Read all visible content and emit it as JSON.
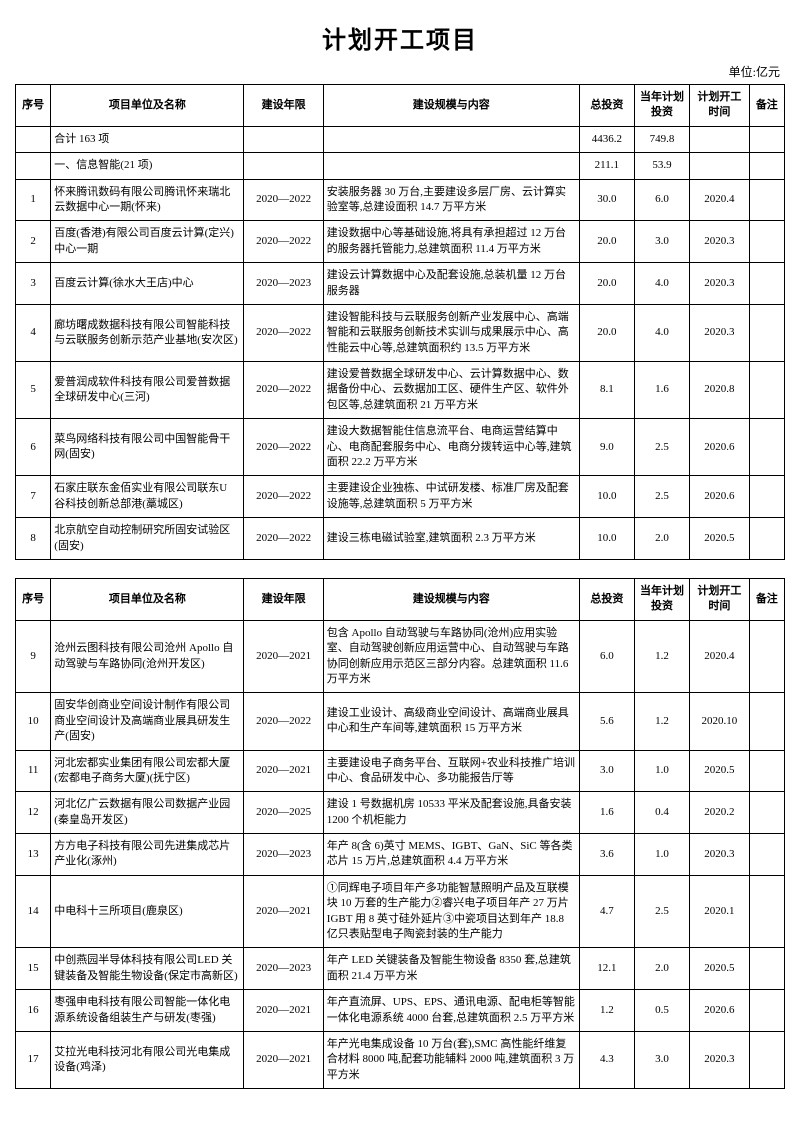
{
  "title": "计划开工项目",
  "unit_label": "单位:亿元",
  "headers": {
    "seq": "序号",
    "name": "项目单位及名称",
    "period": "建设年限",
    "content": "建设规模与内容",
    "total_inv": "总投资",
    "year_inv": "当年计划投资",
    "start": "计划开工时间",
    "note": "备注"
  },
  "summary": {
    "total_label": "合计 163 项",
    "total_inv": "4436.2",
    "year_inv": "749.8",
    "cat1_label": "一、信息智能(21 项)",
    "cat1_inv": "211.1",
    "cat1_year": "53.9"
  },
  "table1_rows": [
    {
      "seq": "1",
      "name": "怀来腾讯数码有限公司腾讯怀来瑞北云数据中心一期(怀来)",
      "period": "2020—2022",
      "content": "安装服务器 30 万台,主要建设多层厂房、云计算实验室等,总建设面积 14.7 万平方米",
      "inv": "30.0",
      "yinv": "6.0",
      "start": "2020.4"
    },
    {
      "seq": "2",
      "name": "百度(香港)有限公司百度云计算(定兴)中心一期",
      "period": "2020—2022",
      "content": "建设数据中心等基础设施,将具有承担超过 12 万台的服务器托管能力,总建筑面积 11.4 万平方米",
      "inv": "20.0",
      "yinv": "3.0",
      "start": "2020.3"
    },
    {
      "seq": "3",
      "name": "百度云计算(徐水大王店)中心",
      "period": "2020—2023",
      "content": "建设云计算数据中心及配套设施,总装机量 12 万台服务器",
      "inv": "20.0",
      "yinv": "4.0",
      "start": "2020.3"
    },
    {
      "seq": "4",
      "name": "廊坊曙成数据科技有限公司智能科技与云联服务创新示范产业基地(安次区)",
      "period": "2020—2022",
      "content": "建设智能科技与云联服务创新产业发展中心、高端智能和云联服务创新技术实训与成果展示中心、高性能云中心等,总建筑面积约 13.5 万平方米",
      "inv": "20.0",
      "yinv": "4.0",
      "start": "2020.3"
    },
    {
      "seq": "5",
      "name": "爱普润成软件科技有限公司爱普数据全球研发中心(三河)",
      "period": "2020—2022",
      "content": "建设爱普数据全球研发中心、云计算数据中心、数据备份中心、云数据加工区、硬件生产区、软件外包区等,总建筑面积 21 万平方米",
      "inv": "8.1",
      "yinv": "1.6",
      "start": "2020.8"
    },
    {
      "seq": "6",
      "name": "菜鸟网络科技有限公司中国智能骨干网(固安)",
      "period": "2020—2022",
      "content": "建设大数据智能住信息流平台、电商运营结算中心、电商配套服务中心、电商分拨转运中心等,建筑面积 22.2 万平方米",
      "inv": "9.0",
      "yinv": "2.5",
      "start": "2020.6"
    },
    {
      "seq": "7",
      "name": "石家庄联东金佰实业有限公司联东U 谷科技创新总部港(藁城区)",
      "period": "2020—2022",
      "content": "主要建设企业独栋、中试研发楼、标准厂房及配套设施等,总建筑面积 5 万平方米",
      "inv": "10.0",
      "yinv": "2.5",
      "start": "2020.6"
    },
    {
      "seq": "8",
      "name": "北京航空自动控制研究所固安试验区(固安)",
      "period": "2020—2022",
      "content": "建设三栋电磁试验室,建筑面积 2.3 万平方米",
      "inv": "10.0",
      "yinv": "2.0",
      "start": "2020.5"
    }
  ],
  "table2_rows": [
    {
      "seq": "9",
      "name": "沧州云图科技有限公司沧州 Apollo 自动驾驶与车路协同(沧州开发区)",
      "period": "2020—2021",
      "content": "包含 Apollo 自动驾驶与车路协同(沧州)应用实验室、自动驾驶创新应用运营中心、自动驾驶与车路协同创新应用示范区三部分内容。总建筑面积 11.6 万平方米",
      "inv": "6.0",
      "yinv": "1.2",
      "start": "2020.4"
    },
    {
      "seq": "10",
      "name": "固安华创商业空间设计制作有限公司商业空间设计及高端商业展具研发生产(固安)",
      "period": "2020—2022",
      "content": "建设工业设计、高级商业空间设计、高端商业展具中心和生产车间等,建筑面积 15 万平方米",
      "inv": "5.6",
      "yinv": "1.2",
      "start": "2020.10"
    },
    {
      "seq": "11",
      "name": "河北宏都实业集团有限公司宏都大厦(宏都电子商务大厦)(抚宁区)",
      "period": "2020—2021",
      "content": "主要建设电子商务平台、互联网+农业科技推广培训中心、食品研发中心、多功能报告厅等",
      "inv": "3.0",
      "yinv": "1.0",
      "start": "2020.5"
    },
    {
      "seq": "12",
      "name": "河北亿广云数据有限公司数据产业园(秦皇岛开发区)",
      "period": "2020—2025",
      "content": "建设 1 号数据机房 10533 平米及配套设施,具备安装 1200 个机柜能力",
      "inv": "1.6",
      "yinv": "0.4",
      "start": "2020.2"
    },
    {
      "seq": "13",
      "name": "方方电子科技有限公司先进集成芯片产业化(涿州)",
      "period": "2020—2023",
      "content": "年产 8(含 6)英寸 MEMS、IGBT、GaN、SiC 等各类芯片 15 万片,总建筑面积 4.4 万平方米",
      "inv": "3.6",
      "yinv": "1.0",
      "start": "2020.3"
    },
    {
      "seq": "14",
      "name": "中电科十三所项目(鹿泉区)",
      "period": "2020—2021",
      "content": "①同辉电子项目年产多功能智慧照明产品及互联模块 10 万套的生产能力②睿兴电子项目年产 27 万片 IGBT 用 8 英寸硅外延片③中瓷项目达到年产 18.8 亿只表贴型电子陶瓷封装的生产能力",
      "inv": "4.7",
      "yinv": "2.5",
      "start": "2020.1"
    },
    {
      "seq": "15",
      "name": "中创燕园半导体科技有限公司LED 关键装备及智能生物设备(保定市高新区)",
      "period": "2020—2023",
      "content": "年产 LED 关键装备及智能生物设备 8350 套,总建筑面积 21.4 万平方米",
      "inv": "12.1",
      "yinv": "2.0",
      "start": "2020.5"
    },
    {
      "seq": "16",
      "name": "枣强申电科技有限公司智能一体化电源系统设备组装生产与研发(枣强)",
      "period": "2020—2021",
      "content": "年产直流屏、UPS、EPS、通讯电源、配电柜等智能一体化电源系统 4000 台套,总建筑面积 2.5 万平方米",
      "inv": "1.2",
      "yinv": "0.5",
      "start": "2020.6"
    },
    {
      "seq": "17",
      "name": "艾拉光电科技河北有限公司光电集成设备(鸡泽)",
      "period": "2020—2021",
      "content": "年产光电集成设备 10 万台(套),SMC 高性能纤维复合材料 8000 吨,配套功能辅料 2000 吨,建筑面积 3 万平方米",
      "inv": "4.3",
      "yinv": "3.0",
      "start": "2020.3"
    }
  ]
}
